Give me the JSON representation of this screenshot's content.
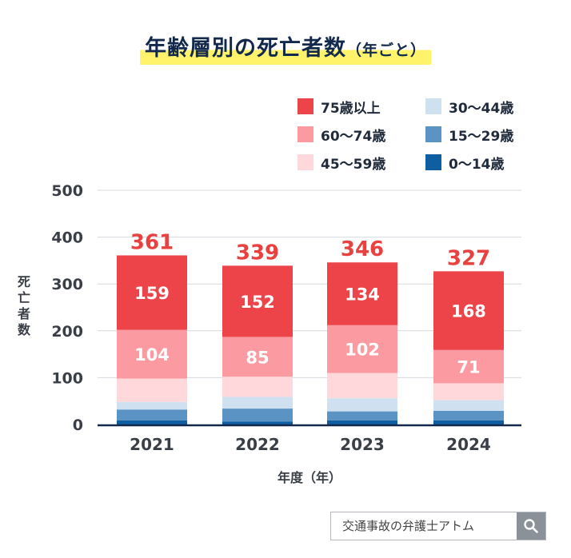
{
  "title": {
    "main": "年齢層別の死亡者数",
    "suffix": "（年ごと）"
  },
  "chart_data": {
    "type": "bar",
    "stacked": true,
    "categories": [
      "2021",
      "2022",
      "2023",
      "2024"
    ],
    "series": [
      {
        "name": "0〜14歳",
        "color": "#0f5ea2",
        "values": [
          9,
          6,
          9,
          9
        ]
      },
      {
        "name": "15〜29歳",
        "color": "#5a93c4",
        "values": [
          23,
          28,
          19,
          20
        ]
      },
      {
        "name": "30〜44歳",
        "color": "#cfe0f0",
        "values": [
          16,
          25,
          28,
          23
        ]
      },
      {
        "name": "45〜59歳",
        "color": "#ffd8db",
        "values": [
          50,
          43,
          54,
          36
        ]
      },
      {
        "name": "60〜74歳",
        "color": "#fb9ba1",
        "values": [
          104,
          85,
          102,
          71
        ]
      },
      {
        "name": "75歳以上",
        "color": "#ec4448",
        "values": [
          159,
          152,
          134,
          168
        ]
      }
    ],
    "totals": [
      "361",
      "339",
      "346",
      "327"
    ],
    "data_labels": {
      "60〜74歳": [
        "104",
        "85",
        "102",
        "71"
      ],
      "75歳以上": [
        "159",
        "152",
        "134",
        "168"
      ]
    },
    "ylim": [
      0,
      500
    ],
    "yticks": [
      "0",
      "100",
      "200",
      "300",
      "400",
      "500"
    ],
    "ylabel": "死亡者数",
    "xlabel": "年度（年）",
    "legend_position": "top-right",
    "grid": true
  },
  "search": {
    "text": "交通事故の弁護士アトム"
  },
  "colors": {
    "title": "#13294b",
    "highlight": "#fff36b",
    "total_label": "#e8413f",
    "axis_text": "#3a3f47"
  }
}
